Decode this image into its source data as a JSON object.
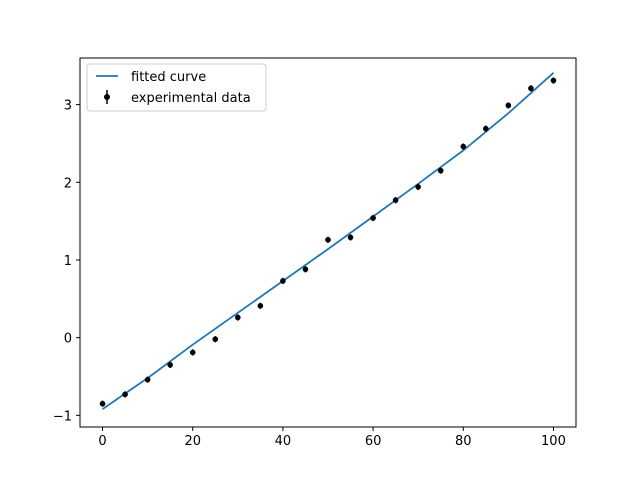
{
  "chart_data": {
    "type": "scatter",
    "title": "",
    "xlabel": "",
    "ylabel": "",
    "xlim": [
      -5,
      105
    ],
    "ylim": [
      -1.15,
      3.6
    ],
    "x_ticks": [
      0,
      20,
      40,
      60,
      80,
      100
    ],
    "y_ticks": [
      -1,
      0,
      1,
      2,
      3
    ],
    "x_tick_labels": [
      "0",
      "20",
      "40",
      "60",
      "80",
      "100"
    ],
    "y_tick_labels": [
      "−1",
      "0",
      "1",
      "2",
      "3"
    ],
    "grid": false,
    "legend_position": "top-left",
    "series": [
      {
        "name": "fitted curve",
        "kind": "line",
        "color": "#1f77b4",
        "x": [
          0,
          10,
          20,
          30,
          40,
          50,
          60,
          70,
          80,
          90,
          100
        ],
        "y": [
          -0.92,
          -0.52,
          -0.09,
          0.32,
          0.73,
          1.14,
          1.56,
          1.98,
          2.41,
          2.89,
          3.41
        ]
      },
      {
        "name": "experimental data",
        "kind": "errorbar",
        "color": "#000000",
        "x": [
          0,
          5,
          10,
          15,
          20,
          25,
          30,
          35,
          40,
          45,
          50,
          55,
          60,
          65,
          70,
          75,
          80,
          85,
          90,
          95,
          100
        ],
        "y": [
          -0.85,
          -0.73,
          -0.54,
          -0.35,
          -0.19,
          -0.02,
          0.26,
          0.41,
          0.73,
          0.88,
          1.26,
          1.29,
          1.54,
          1.77,
          1.94,
          2.15,
          2.46,
          2.69,
          2.99,
          3.21,
          3.31
        ],
        "yerr": [
          0.04,
          0.04,
          0.04,
          0.04,
          0.04,
          0.04,
          0.04,
          0.04,
          0.04,
          0.04,
          0.04,
          0.04,
          0.04,
          0.04,
          0.04,
          0.04,
          0.04,
          0.04,
          0.04,
          0.04,
          0.04
        ]
      }
    ]
  }
}
